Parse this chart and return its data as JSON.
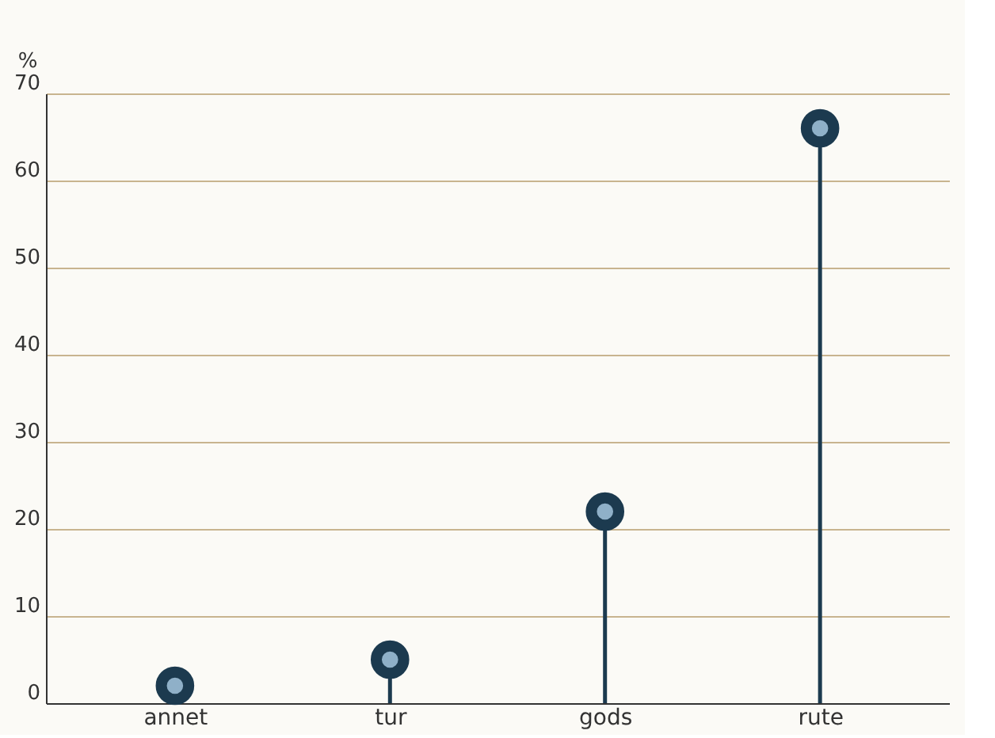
{
  "chart_data": {
    "type": "lollipop",
    "ylabel": "%",
    "categories": [
      "annet",
      "tur",
      "gods",
      "rute"
    ],
    "values": [
      2,
      5,
      22,
      66
    ],
    "color": "#1c3a4f",
    "ylim": [
      0,
      70
    ],
    "yticks": [
      0,
      10,
      20,
      30,
      40,
      50,
      60,
      70
    ],
    "grid": "y",
    "marker": "circle"
  }
}
